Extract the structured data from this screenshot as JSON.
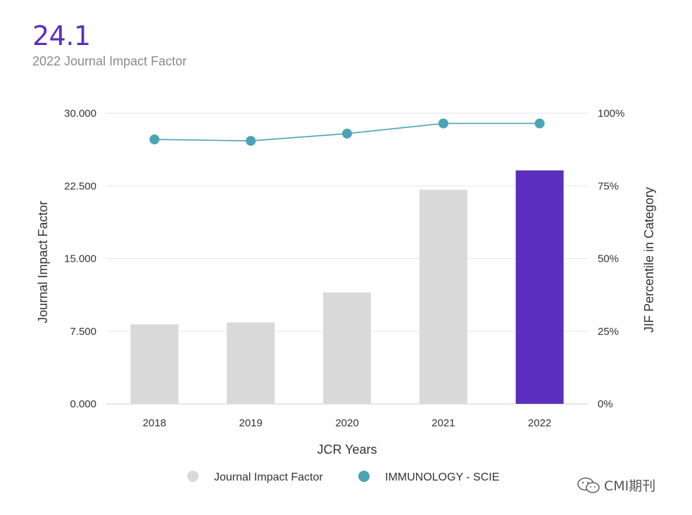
{
  "header": {
    "value": "24.1",
    "caption": "2022 Journal Impact Factor"
  },
  "colors": {
    "accent_bar": "#5b2fbd",
    "default_bar": "#d9d9d9",
    "line": "#4ba3b5",
    "grid": "#e6e6e6",
    "text": "#333333"
  },
  "watermark": {
    "text": "CMI期刊",
    "icon": "wechat-icon"
  },
  "chart_data": {
    "type": "bar",
    "categories": [
      "2018",
      "2019",
      "2020",
      "2021",
      "2022"
    ],
    "series": [
      {
        "name": "Journal Impact Factor",
        "type": "bar",
        "axis": "left",
        "values": [
          8.2,
          8.4,
          11.5,
          22.1,
          24.1
        ]
      },
      {
        "name": "IMMUNOLOGY - SCIE",
        "type": "line",
        "axis": "right",
        "values": [
          91,
          90.5,
          93,
          96.5,
          96.5
        ]
      }
    ],
    "xlabel": "JCR Years",
    "ylabel": "Journal Impact Factor",
    "ylabel_right": "JIF Percentile in Category",
    "ylim": [
      0,
      30
    ],
    "ylim_right": [
      0,
      100
    ],
    "yticks": [
      "0.000",
      "7.500",
      "15.000",
      "22.500",
      "30.000"
    ],
    "yticks_right": [
      "0%",
      "25%",
      "50%",
      "75%",
      "100%"
    ],
    "grid": true,
    "legend_position": "bottom",
    "highlight_category": "2022"
  }
}
